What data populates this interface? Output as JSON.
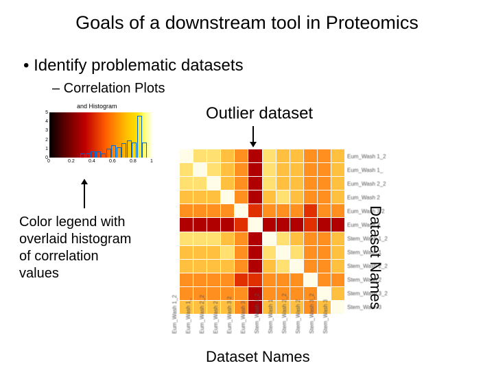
{
  "title": "Goals of a downstream tool in Proteomics",
  "bullet1": "•  Identify problematic datasets",
  "bullet2": "–  Correlation Plots",
  "outlier_label": "Outlier dataset",
  "legend_caption_l1": "Color legend with",
  "legend_caption_l2": "overlaid histogram",
  "legend_caption_l3": "of correlation",
  "legend_caption_l4": "values",
  "dataset_names_label": "Dataset Names",
  "gradient": {
    "title": "and Histogram",
    "x_ticks": [
      "0",
      "0.2",
      "0.4",
      "0.6",
      "0.8",
      "1"
    ],
    "y_ticks": [
      "5",
      "4",
      "3",
      "2",
      "1",
      "0"
    ],
    "hist_heights_pct": [
      0,
      0,
      0,
      0,
      0,
      0,
      9,
      9,
      13,
      13,
      9,
      20,
      27,
      22,
      32,
      38,
      33,
      93,
      33,
      0
    ],
    "bar_color": "#0066cc"
  },
  "heatmap": {
    "type": "heatmap",
    "n": 12,
    "colors": {
      "d": "#fffde8",
      "h": "#ffe070",
      "o": "#ff9020",
      "r": "#e03000",
      "dr": "#b00000",
      "m": "#ffc040"
    },
    "outlier_index": 5,
    "matrix": [
      [
        "d",
        "h",
        "h",
        "m",
        "o",
        "dr",
        "h",
        "m",
        "m",
        "o",
        "o",
        "m"
      ],
      [
        "h",
        "d",
        "h",
        "m",
        "o",
        "dr",
        "h",
        "m",
        "m",
        "o",
        "o",
        "m"
      ],
      [
        "h",
        "h",
        "d",
        "m",
        "o",
        "dr",
        "h",
        "m",
        "m",
        "o",
        "o",
        "m"
      ],
      [
        "m",
        "m",
        "m",
        "d",
        "o",
        "dr",
        "m",
        "h",
        "m",
        "o",
        "o",
        "m"
      ],
      [
        "o",
        "o",
        "o",
        "o",
        "d",
        "r",
        "o",
        "o",
        "o",
        "r",
        "o",
        "o"
      ],
      [
        "dr",
        "dr",
        "dr",
        "dr",
        "r",
        "d",
        "dr",
        "dr",
        "dr",
        "r",
        "dr",
        "dr"
      ],
      [
        "h",
        "h",
        "h",
        "m",
        "o",
        "dr",
        "d",
        "h",
        "m",
        "o",
        "o",
        "m"
      ],
      [
        "m",
        "m",
        "m",
        "h",
        "o",
        "dr",
        "h",
        "d",
        "h",
        "o",
        "o",
        "m"
      ],
      [
        "m",
        "m",
        "m",
        "m",
        "o",
        "dr",
        "m",
        "h",
        "d",
        "o",
        "o",
        "m"
      ],
      [
        "o",
        "o",
        "o",
        "o",
        "r",
        "r",
        "o",
        "o",
        "o",
        "d",
        "o",
        "o"
      ],
      [
        "o",
        "o",
        "o",
        "o",
        "o",
        "dr",
        "o",
        "o",
        "o",
        "o",
        "d",
        "m"
      ],
      [
        "m",
        "m",
        "m",
        "m",
        "o",
        "dr",
        "m",
        "m",
        "m",
        "o",
        "m",
        "d"
      ]
    ],
    "row_labels": [
      "Eum_Wash 1_2",
      "Eum_Wash 1_",
      "Eum_Wash 2_2",
      "Eum_Wash 2",
      "Eum_Wash 3 2",
      "Eum_Wash 3",
      "Stem_Wash 1_2",
      "Stem_Wash 1",
      "Stem_Wash 2_2",
      "Stem_Wash 2",
      "Stem_Wash 3_2",
      "Stem_Wash 3"
    ],
    "col_labels": [
      "Eum_Wash 1_2",
      "Eum_Wash 1_",
      "Eum_Wash 2_2",
      "Eum_Wash 2",
      "Eum_Wash 3 2",
      "Eum_Wash 3",
      "Stem_Wash 1_2",
      "Stem_Wash 1",
      "Stem_Wash 2_2",
      "Stem_Wash 2",
      "Stem_Wash 3_2",
      "Stem_Wash 3"
    ]
  }
}
